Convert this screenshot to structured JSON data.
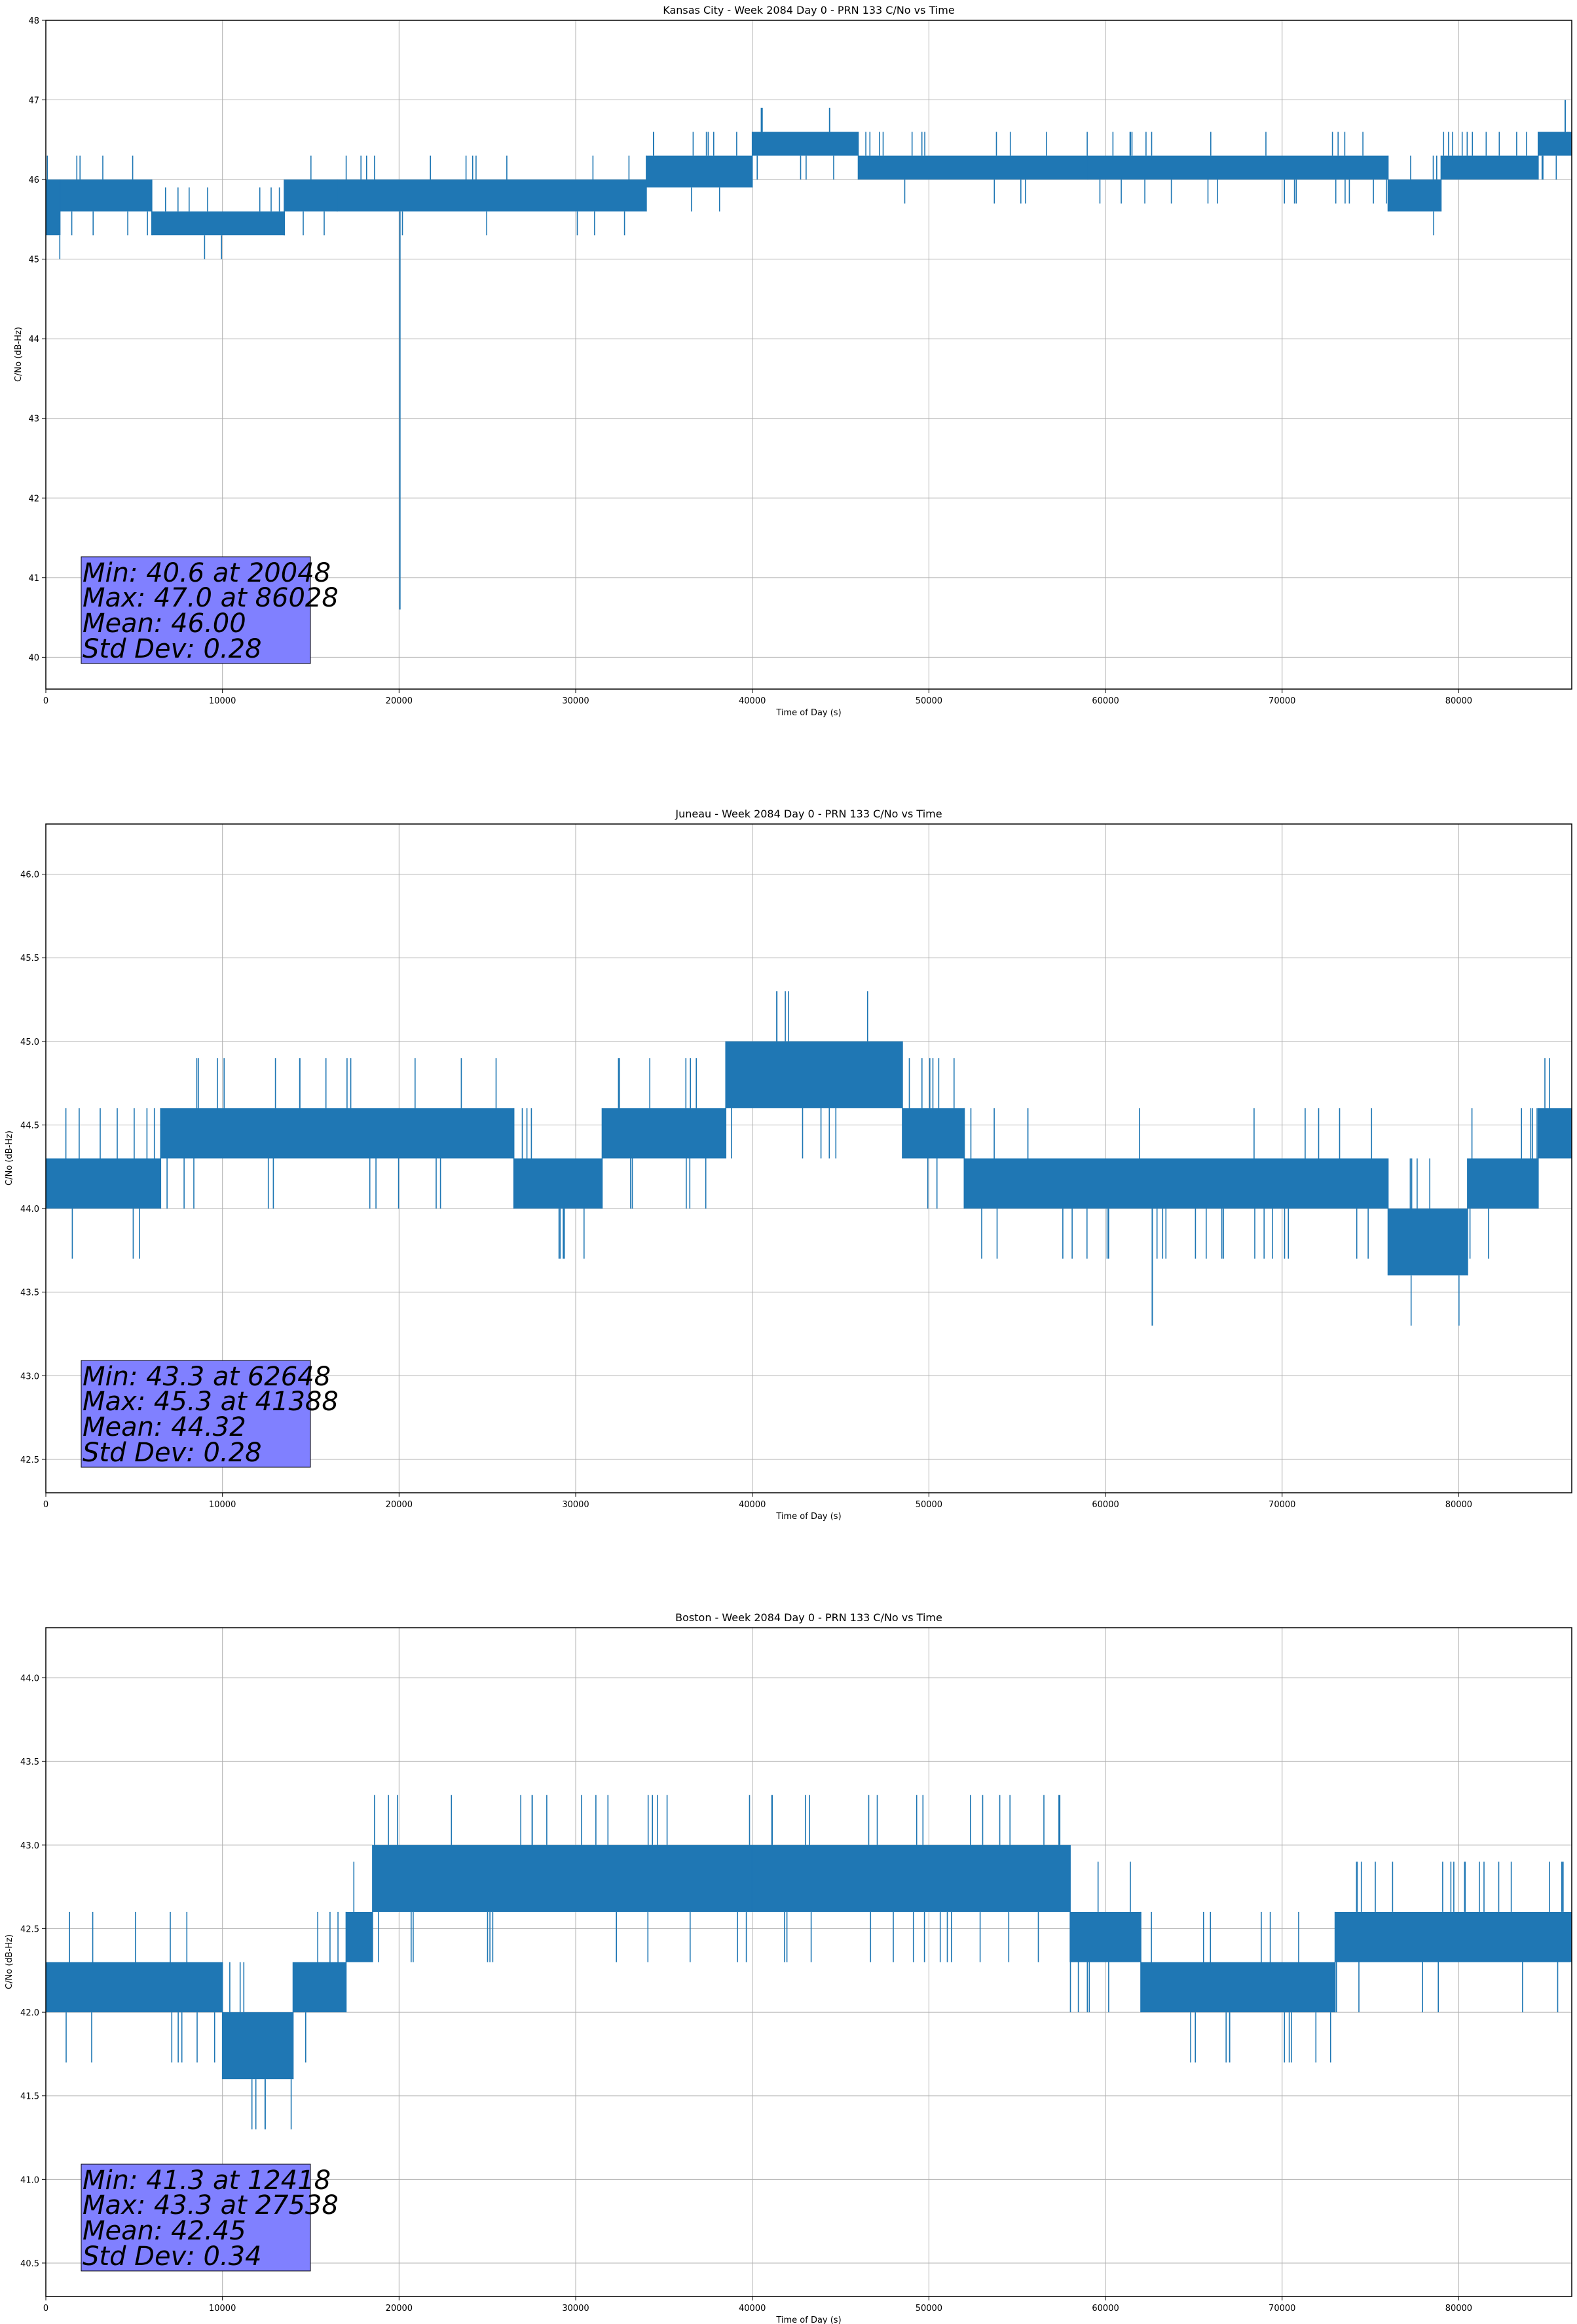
{
  "chart_data": [
    {
      "type": "line",
      "title": "Kansas City - Week 2084 Day 0 - PRN 133 C/No vs Time",
      "xlabel": "Time of Day (s)",
      "ylabel": "C/No (dB-Hz)",
      "xlim": [
        0,
        86400
      ],
      "ylim": [
        39.6,
        48.0
      ],
      "xticks": [
        0,
        10000,
        20000,
        30000,
        40000,
        50000,
        60000,
        70000,
        80000
      ],
      "xtick_labels": [
        "0",
        "10000",
        "20000",
        "30000",
        "40000",
        "50000",
        "60000",
        "70000",
        "80000"
      ],
      "yticks": [
        40,
        41,
        42,
        43,
        44,
        45,
        46,
        47,
        48
      ],
      "ytick_labels": [
        "40",
        "41",
        "42",
        "43",
        "44",
        "45",
        "46",
        "47",
        "48"
      ],
      "grid": true,
      "line_color": "#1f77b4",
      "series_bands": [
        {
          "x": [
            0,
            800
          ],
          "low": 45.3,
          "high": 46.0
        },
        {
          "x": [
            800,
            6000
          ],
          "low": 45.6,
          "high": 46.0
        },
        {
          "x": [
            6000,
            13500
          ],
          "low": 45.3,
          "high": 45.6
        },
        {
          "x": [
            13500,
            16500
          ],
          "low": 45.6,
          "high": 46.0
        },
        {
          "x": [
            16500,
            34000
          ],
          "low": 45.6,
          "high": 46.0
        },
        {
          "x": [
            34000,
            40000
          ],
          "low": 45.9,
          "high": 46.3
        },
        {
          "x": [
            40000,
            46000
          ],
          "low": 46.3,
          "high": 46.6
        },
        {
          "x": [
            46000,
            59000
          ],
          "low": 46.0,
          "high": 46.3
        },
        {
          "x": [
            59000,
            76000
          ],
          "low": 46.0,
          "high": 46.3
        },
        {
          "x": [
            76000,
            79000
          ],
          "low": 45.6,
          "high": 46.0
        },
        {
          "x": [
            79000,
            84500
          ],
          "low": 46.0,
          "high": 46.3
        },
        {
          "x": [
            84500,
            86400
          ],
          "low": 46.3,
          "high": 46.6
        }
      ],
      "spike": {
        "x": 20048,
        "y": 40.6
      },
      "max_point": {
        "x": 86028,
        "y": 47.0
      },
      "stats": {
        "min_text": "Min: 40.6 at 20048",
        "max_text": "Max: 47.0 at 86028",
        "mean_text": "Mean: 46.00",
        "std_text": "Std Dev: 0.28"
      }
    },
    {
      "type": "line",
      "title": "Juneau - Week 2084 Day 0 - PRN 133 C/No vs Time",
      "xlabel": "Time of Day (s)",
      "ylabel": "C/No (dB-Hz)",
      "xlim": [
        0,
        86400
      ],
      "ylim": [
        42.3,
        46.3
      ],
      "xticks": [
        0,
        10000,
        20000,
        30000,
        40000,
        50000,
        60000,
        70000,
        80000
      ],
      "xtick_labels": [
        "0",
        "10000",
        "20000",
        "30000",
        "40000",
        "50000",
        "60000",
        "70000",
        "80000"
      ],
      "yticks": [
        42.5,
        43.0,
        43.5,
        44.0,
        44.5,
        45.0,
        45.5,
        46.0
      ],
      "ytick_labels": [
        "42.5",
        "43.0",
        "43.5",
        "44.0",
        "44.5",
        "45.0",
        "45.5",
        "46.0"
      ],
      "grid": true,
      "line_color": "#1f77b4",
      "series_bands": [
        {
          "x": [
            0,
            6500
          ],
          "low": 44.0,
          "high": 44.3
        },
        {
          "x": [
            6500,
            26500
          ],
          "low": 44.3,
          "high": 44.6
        },
        {
          "x": [
            26500,
            31500
          ],
          "low": 44.0,
          "high": 44.3
        },
        {
          "x": [
            31500,
            38500
          ],
          "low": 44.3,
          "high": 44.6
        },
        {
          "x": [
            38500,
            48500
          ],
          "low": 44.6,
          "high": 45.0
        },
        {
          "x": [
            48500,
            52000
          ],
          "low": 44.3,
          "high": 44.6
        },
        {
          "x": [
            52000,
            76000
          ],
          "low": 44.0,
          "high": 44.3
        },
        {
          "x": [
            76000,
            80500
          ],
          "low": 43.6,
          "high": 44.0
        },
        {
          "x": [
            80500,
            84500
          ],
          "low": 44.0,
          "high": 44.3
        },
        {
          "x": [
            84500,
            86400
          ],
          "low": 44.3,
          "high": 44.6
        }
      ],
      "spike": {
        "x": 62648,
        "y": 43.3
      },
      "max_point": {
        "x": 41388,
        "y": 45.3
      },
      "stats": {
        "min_text": "Min: 43.3 at 62648",
        "max_text": "Max: 45.3 at 41388",
        "mean_text": "Mean: 44.32",
        "std_text": "Std Dev: 0.28"
      }
    },
    {
      "type": "line",
      "title": "Boston - Week 2084 Day 0 - PRN 133 C/No vs Time",
      "xlabel": "Time of Day (s)",
      "ylabel": "C/No (dB-Hz)",
      "xlim": [
        0,
        86400
      ],
      "ylim": [
        40.3,
        44.3
      ],
      "xticks": [
        0,
        10000,
        20000,
        30000,
        40000,
        50000,
        60000,
        70000,
        80000
      ],
      "xtick_labels": [
        "0",
        "10000",
        "20000",
        "30000",
        "40000",
        "50000",
        "60000",
        "70000",
        "80000"
      ],
      "yticks": [
        40.5,
        41.0,
        41.5,
        42.0,
        42.5,
        43.0,
        43.5,
        44.0
      ],
      "ytick_labels": [
        "40.5",
        "41.0",
        "41.5",
        "42.0",
        "42.5",
        "43.0",
        "43.5",
        "44.0"
      ],
      "grid": true,
      "line_color": "#1f77b4",
      "series_bands": [
        {
          "x": [
            0,
            10000
          ],
          "low": 42.0,
          "high": 42.3
        },
        {
          "x": [
            10000,
            14000
          ],
          "low": 41.6,
          "high": 42.0
        },
        {
          "x": [
            14000,
            17000
          ],
          "low": 42.0,
          "high": 42.3
        },
        {
          "x": [
            17000,
            18500
          ],
          "low": 42.3,
          "high": 42.6
        },
        {
          "x": [
            18500,
            40000
          ],
          "low": 42.6,
          "high": 43.0
        },
        {
          "x": [
            40000,
            58000
          ],
          "low": 42.6,
          "high": 43.0
        },
        {
          "x": [
            58000,
            62000
          ],
          "low": 42.3,
          "high": 42.6
        },
        {
          "x": [
            62000,
            73000
          ],
          "low": 42.0,
          "high": 42.3
        },
        {
          "x": [
            73000,
            86400
          ],
          "low": 42.3,
          "high": 42.6
        }
      ],
      "spike": {
        "x": 12418,
        "y": 41.3
      },
      "max_point": {
        "x": 27538,
        "y": 43.3
      },
      "stats": {
        "min_text": "Min: 41.3 at 12418",
        "max_text": "Max: 43.3 at 27538",
        "mean_text": "Mean: 42.45",
        "std_text": "Std Dev: 0.34"
      }
    }
  ]
}
